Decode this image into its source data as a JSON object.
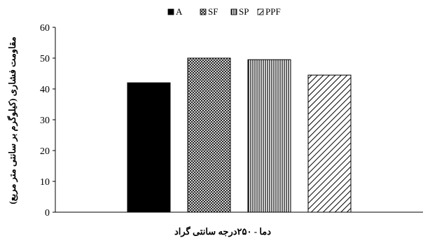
{
  "chart_data": {
    "type": "bar",
    "title": "",
    "categories": [
      "A",
      "SF",
      "SP",
      "PPF"
    ],
    "values": [
      42,
      50,
      49.5,
      44.5
    ],
    "series": [
      {
        "name": "A",
        "value": 42,
        "fill": "solid",
        "color": "#000000"
      },
      {
        "name": "SF",
        "value": 50,
        "fill": "crosshatch",
        "color": "#000000"
      },
      {
        "name": "SP",
        "value": 49.5,
        "fill": "vertical-lines",
        "color": "#000000"
      },
      {
        "name": "PPF",
        "value": 44.5,
        "fill": "diagonal-lines",
        "color": "#000000"
      }
    ],
    "xlabel": "دما - ۲۵۰درجه سانتی گراد",
    "ylabel": "مقاومت فشاری (کیلوگرم بر سانتی متر مربع)",
    "ylim": [
      0,
      60
    ],
    "yticks": [
      0,
      10,
      20,
      30,
      40,
      50,
      60
    ],
    "grid": false,
    "legend_position": "top-center"
  }
}
